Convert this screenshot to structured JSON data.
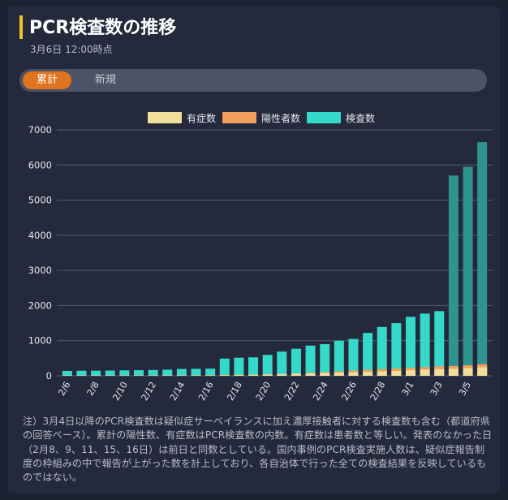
{
  "header": {
    "title": "PCR検査数の推移",
    "timestamp": "3月6日 12:00時点"
  },
  "tabs": [
    {
      "label": "累計",
      "active": true
    },
    {
      "label": "新規",
      "active": false
    }
  ],
  "colors": {
    "symptomatic": "#f0df9c",
    "positive": "#f0a05a",
    "tests": "#35d9c9",
    "tests_highlight": "#2f9490",
    "accent": "#f2c12e",
    "active_tab": "#e0731d"
  },
  "chart_data": {
    "type": "bar",
    "stacked": true,
    "categories": [
      "2/6",
      "2/7",
      "2/8",
      "2/9",
      "2/10",
      "2/11",
      "2/12",
      "2/13",
      "2/14",
      "2/15",
      "2/16",
      "2/17",
      "2/18",
      "2/19",
      "2/20",
      "2/21",
      "2/22",
      "2/23",
      "2/24",
      "2/25",
      "2/26",
      "2/27",
      "2/28",
      "2/29",
      "3/1",
      "3/2",
      "3/3",
      "3/4",
      "3/5",
      "3/6"
    ],
    "tick_labels": [
      "2/6",
      "2/8",
      "2/10",
      "2/12",
      "2/14",
      "2/16",
      "2/18",
      "2/20",
      "2/22",
      "2/24",
      "2/26",
      "2/28",
      "3/1",
      "3/3",
      "3/5"
    ],
    "series": [
      {
        "name": "有症数",
        "color": "#f0df9c",
        "values": [
          8,
          9,
          9,
          9,
          9,
          9,
          10,
          10,
          10,
          10,
          10,
          20,
          25,
          30,
          40,
          50,
          60,
          70,
          80,
          90,
          100,
          110,
          125,
          140,
          160,
          175,
          190,
          200,
          220,
          240
        ]
      },
      {
        "name": "陽性者数",
        "color": "#f0a05a",
        "values": [
          12,
          13,
          13,
          13,
          14,
          14,
          15,
          16,
          17,
          18,
          20,
          25,
          30,
          35,
          45,
          55,
          70,
          85,
          105,
          130,
          150,
          170,
          190,
          210,
          230,
          250,
          270,
          280,
          300,
          330
        ]
      },
      {
        "name": "検査数",
        "color": "#35d9c9",
        "values": [
          140,
          145,
          145,
          150,
          155,
          160,
          165,
          175,
          195,
          200,
          205,
          490,
          515,
          525,
          595,
          690,
          770,
          860,
          900,
          1000,
          1050,
          1220,
          1390,
          1500,
          1680,
          1770,
          1840,
          5700,
          5950,
          6650
        ]
      }
    ],
    "highlight_from_index": 27,
    "yticks": [
      0,
      1000,
      2000,
      3000,
      4000,
      5000,
      6000,
      7000
    ],
    "ylim": [
      0,
      7000
    ],
    "grid": true,
    "legend_position": "top-center"
  },
  "note": "注）3月4日以降のPCR検査数は疑似症サーベイランスに加え濃厚接触者に対する検査数も含む（都道府県の回答ベース）。累計の陽性数、有症数はPCR検査数の内数。有症数は患者数と等しい。発表のなかった日（2月8、9、11、15、16日）は前日と同数としている。国内事例のPCR検査実施人数は、疑似症報告制度の枠組みの中で報告が上がった数を計上しており、各自治体で行った全ての検査結果を反映しているものではない。"
}
